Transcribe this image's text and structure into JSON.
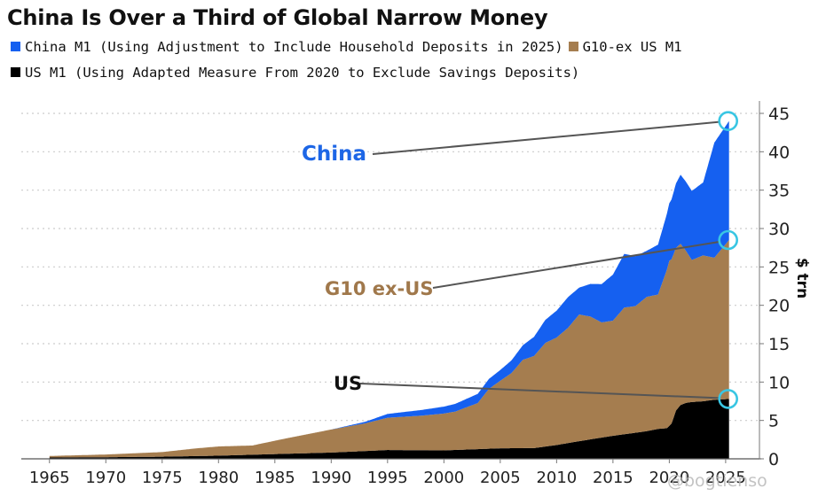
{
  "header": {
    "title": "China Is Over a Third of Global Narrow Money"
  },
  "legend": {
    "china": "China M1 (Using Adjustment to Include Household Deposits in 2025)",
    "g10": "G10-ex US M1",
    "us": "US M1 (Using Adapted Measure From 2020 to Exclude Savings Deposits)"
  },
  "colors": {
    "china": "#1560f0",
    "g10": "#a57d4f",
    "us": "#000000",
    "highlight": "#39c6e3",
    "grid": "#cccccc",
    "china_label": "#1d66e6",
    "g10_label": "#a0784b"
  },
  "watermark": "@bogtienso",
  "chart_data": {
    "type": "area",
    "stacked": true,
    "title": "China Is Over a Third of Global Narrow Money",
    "ylabel": "$ trn",
    "xlabel": "",
    "ylim": [
      0,
      45
    ],
    "xlim": [
      1962.5,
      2028
    ],
    "yaxis_position": "right",
    "y_ticks": [
      "0",
      "5",
      "10",
      "15",
      "20",
      "25",
      "30",
      "35",
      "40",
      "45"
    ],
    "x_ticks": [
      "1965",
      "1970",
      "1975",
      "1980",
      "1985",
      "1990",
      "1995",
      "2000",
      "2005",
      "2010",
      "2015",
      "2020",
      "2025"
    ],
    "grid": "horizontal dotted",
    "annotations": [
      "China",
      "G10 ex-US",
      "US"
    ],
    "series": [
      {
        "name": "US M1 (Using Adapted Measure From 2020 to Exclude Savings Deposits)",
        "points": [
          [
            1965,
            0.17
          ],
          [
            1970,
            0.21
          ],
          [
            1975,
            0.28
          ],
          [
            1980,
            0.41
          ],
          [
            1985,
            0.62
          ],
          [
            1990,
            0.82
          ],
          [
            1992,
            0.95
          ],
          [
            1995,
            1.15
          ],
          [
            2000,
            1.1
          ],
          [
            2005,
            1.37
          ],
          [
            2008,
            1.4
          ],
          [
            2010,
            1.8
          ],
          [
            2012,
            2.3
          ],
          [
            2015,
            3.0
          ],
          [
            2018,
            3.6
          ],
          [
            2019,
            3.9
          ],
          [
            2019.8,
            4.0
          ],
          [
            2020.2,
            4.6
          ],
          [
            2020.6,
            6.3
          ],
          [
            2021,
            7.0
          ],
          [
            2021.5,
            7.3
          ],
          [
            2022,
            7.4
          ],
          [
            2023,
            7.5
          ],
          [
            2024,
            7.7
          ],
          [
            2025.3,
            7.8
          ]
        ]
      },
      {
        "name": "G10-ex US M1",
        "points": [
          [
            1965,
            0.2
          ],
          [
            1970,
            0.35
          ],
          [
            1975,
            0.6
          ],
          [
            1978,
            1.0
          ],
          [
            1980,
            1.2
          ],
          [
            1983,
            1.2
          ],
          [
            1986,
            2.0
          ],
          [
            1988,
            2.5
          ],
          [
            1990,
            3.0
          ],
          [
            1993,
            3.6
          ],
          [
            1995,
            4.2
          ],
          [
            1998,
            4.5
          ],
          [
            2000,
            4.8
          ],
          [
            2001,
            5.0
          ],
          [
            2003,
            6.0
          ],
          [
            2004,
            7.8
          ],
          [
            2005,
            8.8
          ],
          [
            2006,
            9.8
          ],
          [
            2007,
            11.5
          ],
          [
            2008,
            12.0
          ],
          [
            2009,
            13.5
          ],
          [
            2010,
            14.0
          ],
          [
            2011,
            15.0
          ],
          [
            2012,
            16.5
          ],
          [
            2013,
            16.0
          ],
          [
            2014,
            15.0
          ],
          [
            2015,
            15.0
          ],
          [
            2016,
            16.5
          ],
          [
            2017,
            16.5
          ],
          [
            2018,
            17.5
          ],
          [
            2019,
            17.5
          ],
          [
            2020,
            21.5
          ],
          [
            2021,
            21.0
          ],
          [
            2022,
            18.5
          ],
          [
            2023,
            19.0
          ],
          [
            2024,
            18.5
          ],
          [
            2025.3,
            20.7
          ]
        ]
      },
      {
        "name": "China M1 (Using Adjustment to Include Household Deposits in 2025)",
        "points": [
          [
            1965,
            0.0
          ],
          [
            1990,
            0.0
          ],
          [
            1993,
            0.2
          ],
          [
            1995,
            0.5
          ],
          [
            2000,
            0.9
          ],
          [
            2003,
            1.2
          ],
          [
            2005,
            1.4
          ],
          [
            2007,
            1.9
          ],
          [
            2008,
            2.5
          ],
          [
            2010,
            3.5
          ],
          [
            2011,
            4.0
          ],
          [
            2012,
            3.5
          ],
          [
            2014,
            5.0
          ],
          [
            2015,
            6.0
          ],
          [
            2016,
            7.0
          ],
          [
            2017,
            6.5
          ],
          [
            2018,
            6.0
          ],
          [
            2019,
            6.5
          ],
          [
            2020,
            7.5
          ],
          [
            2021,
            9.0
          ],
          [
            2022,
            9.0
          ],
          [
            2023,
            9.5
          ],
          [
            2024,
            15.0
          ],
          [
            2025.3,
            15.5
          ]
        ]
      }
    ],
    "end_values": {
      "China": 44,
      "G10 ex-US": 28.5,
      "US": 7.8
    }
  }
}
